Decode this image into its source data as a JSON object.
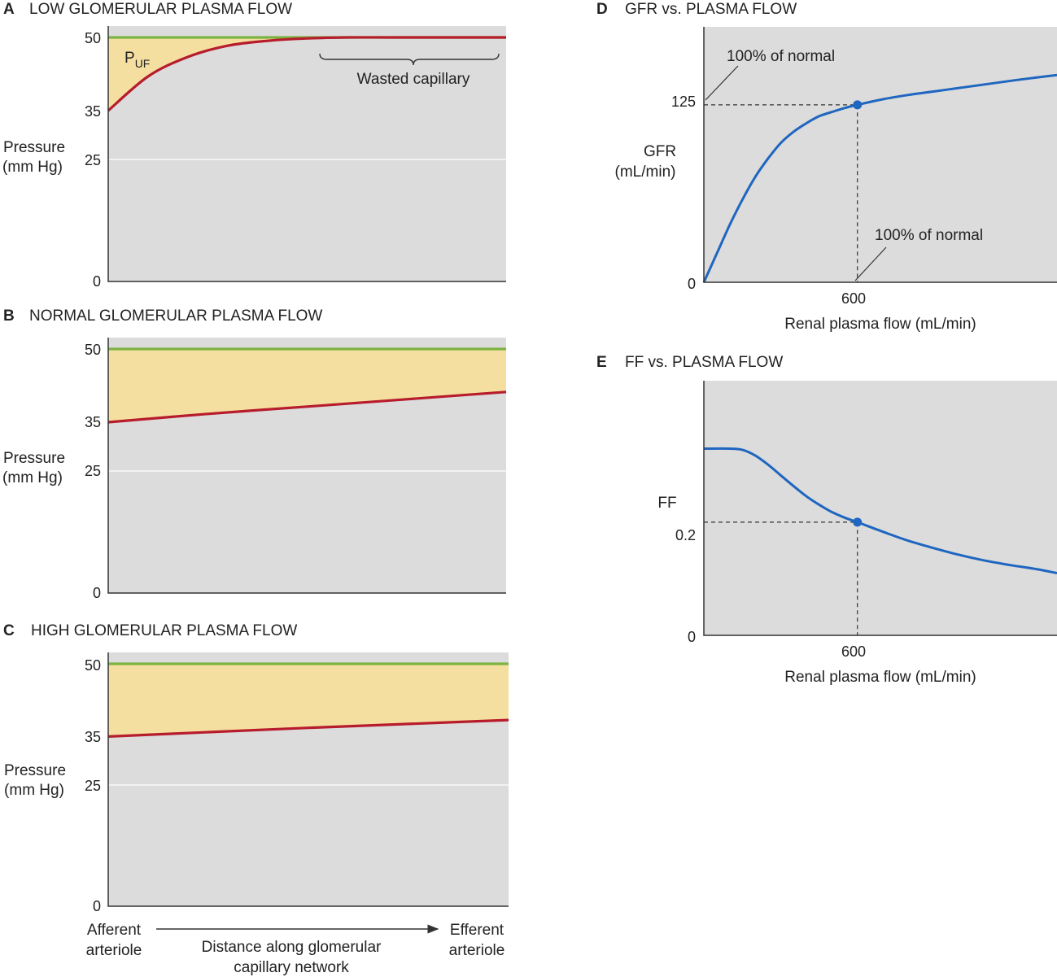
{
  "colors": {
    "plot_bg": "#dcdcdc",
    "puf_fill": "#f5dfa0",
    "oncotic_line": "#7cb342",
    "hydrostatic_line": "#b71c2c",
    "curve": "#1e66c0"
  },
  "labels": {
    "pressure": "Pressure",
    "pressure_unit": "(mm Hg)",
    "puf_main": "P",
    "puf_sub": "UF",
    "wasted": "Wasted capillary",
    "afferent_1": "Afferent",
    "afferent_2": "arteriole",
    "efferent_1": "Efferent",
    "efferent_2": "arteriole",
    "distance_1": "Distance along glomerular",
    "distance_2": "capillary network",
    "gfr_1": "GFR",
    "gfr_2": "(mL/min)",
    "hundred_top": "100% of normal",
    "hundred_bottom": "100% of normal",
    "rpf_d": "Renal plasma flow (mL/min)",
    "rpf_e": "Renal plasma flow (mL/min)",
    "ff": "FF"
  },
  "chart_data": [
    {
      "type": "line",
      "letter": "A",
      "title": "LOW GLOMERULAR PLASMA FLOW",
      "ylabel": "Pressure (mm Hg)",
      "ylim": [
        0,
        50
      ],
      "yticks": [
        "50",
        "35",
        "25",
        "0"
      ],
      "x_start": "Afferent arteriole",
      "x_end": "Efferent arteriole",
      "series": [
        {
          "name": "",
          "x": [
            0,
            0.1,
            0.2,
            0.3,
            0.4,
            0.5,
            0.6,
            0.7,
            0.8,
            0.9,
            1.0
          ],
          "y": [
            35,
            42,
            46,
            48.3,
            49.3,
            49.8,
            50,
            50,
            50,
            50,
            50
          ]
        },
        {
          "name": "",
          "x": [
            0,
            1.0
          ],
          "y": [
            50,
            50
          ]
        }
      ],
      "annotations": [
        "PUF",
        "Wasted capillary"
      ]
    },
    {
      "type": "line",
      "letter": "B",
      "title": "NORMAL GLOMERULAR PLASMA FLOW",
      "ylabel": "Pressure (mm Hg)",
      "ylim": [
        0,
        50
      ],
      "yticks": [
        "50",
        "35",
        "25",
        "0"
      ],
      "series": [
        {
          "name": "",
          "x": [
            0,
            0.25,
            0.5,
            0.75,
            1.0
          ],
          "y": [
            35,
            36.7,
            38.2,
            39.7,
            41.2
          ]
        },
        {
          "name": "",
          "x": [
            0,
            1.0
          ],
          "y": [
            50,
            50
          ]
        }
      ]
    },
    {
      "type": "line",
      "letter": "C",
      "title": "HIGH GLOMERULAR PLASMA FLOW",
      "ylabel": "Pressure (mm Hg)",
      "ylim": [
        0,
        50
      ],
      "yticks": [
        "50",
        "35",
        "25",
        "0"
      ],
      "xlabel": "Distance along glomerular capillary network",
      "series": [
        {
          "name": "",
          "x": [
            0,
            0.25,
            0.5,
            0.75,
            1.0
          ],
          "y": [
            35,
            35.9,
            36.8,
            37.6,
            38.4
          ]
        },
        {
          "name": "",
          "x": [
            0,
            1.0
          ],
          "y": [
            50,
            50
          ]
        }
      ]
    },
    {
      "type": "line",
      "letter": "D",
      "title": "GFR vs. PLASMA FLOW",
      "xlabel": "Renal plasma flow (mL/min)",
      "ylabel": "GFR (mL/min)",
      "xlim": [
        0,
        1380
      ],
      "ylim": [
        0,
        180
      ],
      "xticks": [
        "600"
      ],
      "yticks": [
        "125",
        "0"
      ],
      "series": [
        {
          "name": "",
          "x": [
            0,
            50,
            100,
            150,
            200,
            250,
            300,
            350,
            400,
            450,
            500,
            550,
            600,
            700,
            800,
            900,
            1000,
            1100,
            1200,
            1300,
            1380
          ],
          "y": [
            0,
            20,
            40,
            58,
            74,
            87,
            98,
            106,
            112,
            117,
            120,
            122.8,
            125,
            129,
            132,
            134.5,
            137,
            139.5,
            142,
            144.3,
            146
          ]
        }
      ],
      "marker": {
        "x": 600,
        "y": 125
      },
      "annotations": [
        "100% of normal",
        "100% of normal"
      ]
    },
    {
      "type": "line",
      "letter": "E",
      "title": "FF vs. PLASMA FLOW",
      "xlabel": "Renal plasma flow (mL/min)",
      "ylabel": "FF",
      "xlim": [
        0,
        1380
      ],
      "ylim": [
        0,
        0.45
      ],
      "xticks": [
        "600"
      ],
      "yticks": [
        "0.2",
        "0"
      ],
      "series": [
        {
          "name": "",
          "x": [
            0,
            100,
            150,
            200,
            250,
            300,
            350,
            400,
            450,
            500,
            550,
            600,
            700,
            800,
            900,
            1000,
            1100,
            1200,
            1300,
            1380
          ],
          "y": [
            0.33,
            0.33,
            0.328,
            0.318,
            0.302,
            0.283,
            0.264,
            0.246,
            0.231,
            0.218,
            0.208,
            0.2,
            0.183,
            0.167,
            0.154,
            0.142,
            0.132,
            0.124,
            0.117,
            0.11
          ]
        }
      ],
      "marker": {
        "x": 600,
        "y": 0.2
      }
    }
  ]
}
